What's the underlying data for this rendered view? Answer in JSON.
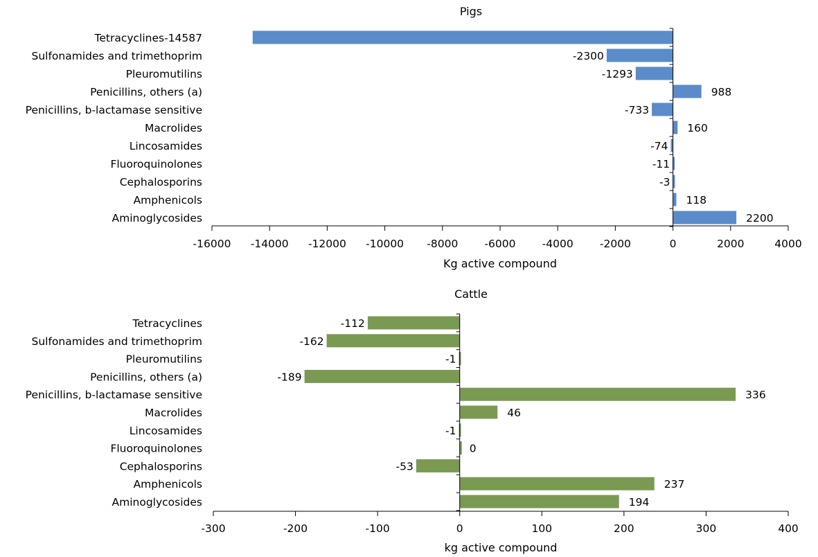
{
  "chart_data": [
    {
      "type": "bar",
      "orientation": "horizontal",
      "title": "Pigs",
      "xlabel": "Kg active compound",
      "ylabel": "",
      "xlim": [
        -16000,
        4000
      ],
      "xticks": [
        "-16000",
        "-14000",
        "-12000",
        "-10000",
        "-8000",
        "-6000",
        "-4000",
        "-2000",
        "0",
        "2000",
        "4000"
      ],
      "color": "#5b8bc9",
      "categories": [
        "Tetracyclines-14587",
        "Sulfonamides and trimethoprim",
        "Pleuromutilins",
        "Penicillins, others (a)",
        "Penicillins, b-lactamase sensitive",
        "Macrolides",
        "Lincosamides",
        "Fluoroquinolones",
        "Cephalosporins",
        "Amphenicols",
        "Aminoglycosides"
      ],
      "values": [
        -14587,
        -2300,
        -1293,
        988,
        -733,
        160,
        -74,
        -11,
        -3,
        118,
        2200
      ],
      "data_labels": [
        "",
        "-2300",
        "-1293",
        "988",
        "-733",
        "160",
        "-74",
        "-11",
        "-3",
        "118",
        "2200"
      ],
      "grid": false,
      "legend": "none"
    },
    {
      "type": "bar",
      "orientation": "horizontal",
      "title": "Cattle",
      "xlabel": "kg active compound",
      "ylabel": "",
      "xlim": [
        -300,
        400
      ],
      "xticks": [
        "-300",
        "-200",
        "-100",
        "0",
        "100",
        "200",
        "300",
        "400"
      ],
      "color": "#7a9a52",
      "categories": [
        "Tetracyclines",
        "Sulfonamides and trimethoprim",
        "Pleuromutilins",
        "Penicillins, others (a)",
        "Penicillins, b-lactamase sensitive",
        "Macrolides",
        "Lincosamides",
        "Fluoroquinolones",
        "Cephalosporins",
        "Amphenicols",
        "Aminoglycosides"
      ],
      "values": [
        -112,
        -162,
        -1,
        -189,
        336,
        46,
        -1,
        0,
        -53,
        237,
        194
      ],
      "data_labels": [
        "-112",
        "-162",
        "-1",
        "-189",
        "336",
        "46",
        "-1",
        "0",
        "-53",
        "237",
        "194"
      ],
      "grid": false,
      "legend": "none"
    }
  ]
}
